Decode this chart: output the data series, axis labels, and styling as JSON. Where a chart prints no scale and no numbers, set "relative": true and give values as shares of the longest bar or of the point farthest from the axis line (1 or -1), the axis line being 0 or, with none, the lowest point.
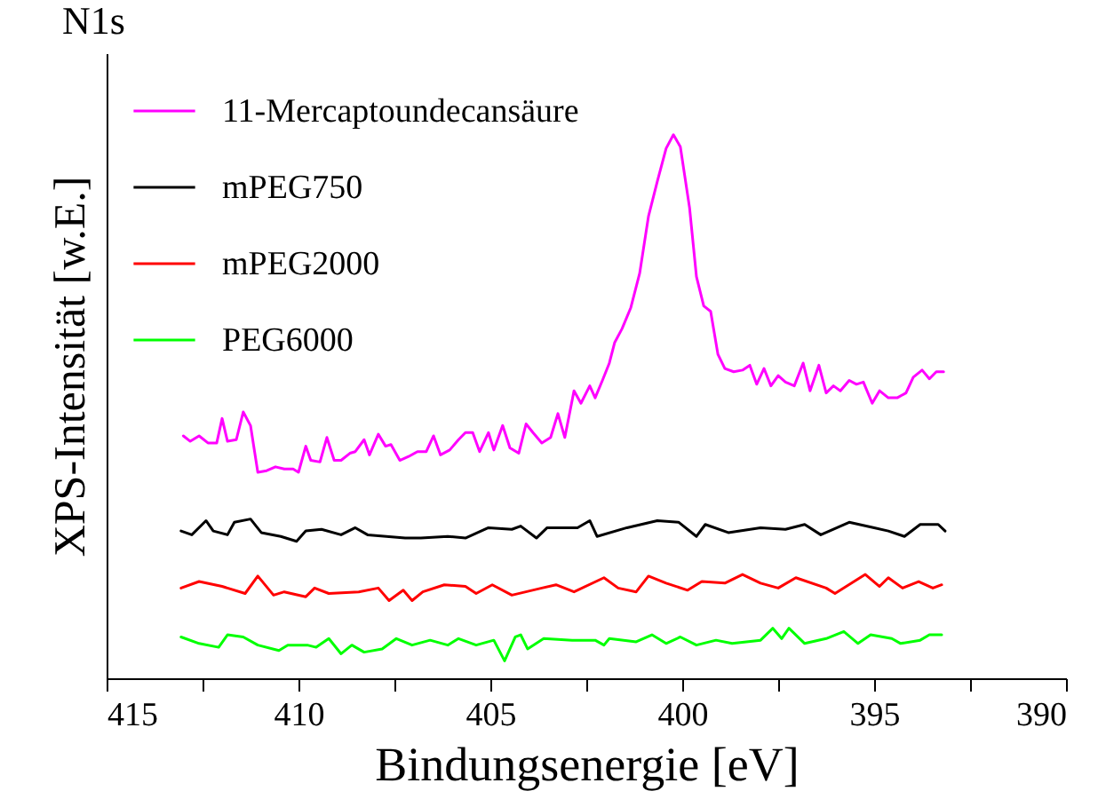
{
  "chart_data": {
    "type": "line",
    "title": "N1s",
    "xlabel": "Bindungsenergie [eV]",
    "ylabel": "XPS-Intensität [w.E.]",
    "relative": true,
    "legend": "top left",
    "grid": false,
    "xlim": [
      415,
      390
    ],
    "xticks": [
      415,
      {
        "value": 412.5,
        "label": null
      },
      410,
      {
        "value": 407.5,
        "label": null
      },
      405,
      {
        "value": 402.5,
        "label": null
      },
      400,
      {
        "value": 397.5,
        "label": null
      },
      395,
      {
        "value": 392.5,
        "label": null
      },
      390
    ],
    "series": [
      {
        "name": "11-Mercaptoundecansäure",
        "color": "#ff00ff",
        "x": [
          413.0,
          412.82,
          412.59,
          412.36,
          412.13,
          411.99,
          411.85,
          411.62,
          411.44,
          411.25,
          411.06,
          410.83,
          410.6,
          410.37,
          410.14,
          410.0,
          409.81,
          409.68,
          409.44,
          409.26,
          409.07,
          408.89,
          408.66,
          408.52,
          408.29,
          408.15,
          407.92,
          407.73,
          407.59,
          407.36,
          407.13,
          406.9,
          406.67,
          406.48,
          406.3,
          406.06,
          405.83,
          405.65,
          405.46,
          405.28,
          405.05,
          404.91,
          404.68,
          404.49,
          404.26,
          404.07,
          403.89,
          403.66,
          403.43,
          403.24,
          403.06,
          402.82,
          402.64,
          402.41,
          402.27,
          402.08,
          401.9,
          401.76,
          401.57,
          401.34,
          401.11,
          400.88,
          400.65,
          400.42,
          400.23,
          400.05,
          399.81,
          399.63,
          399.44,
          399.26,
          399.07,
          398.89,
          398.66,
          398.43,
          398.24,
          398.06,
          397.87,
          397.69,
          397.5,
          397.31,
          397.08,
          396.85,
          396.67,
          396.44,
          396.25,
          396.06,
          395.88,
          395.65,
          395.46,
          395.28,
          395.05,
          394.86,
          394.63,
          394.4,
          394.17,
          393.98,
          393.75,
          393.56,
          393.38,
          393.19
        ],
        "values": [
          0.446,
          0.436,
          0.446,
          0.433,
          0.433,
          0.478,
          0.436,
          0.439,
          0.49,
          0.465,
          0.379,
          0.382,
          0.389,
          0.385,
          0.385,
          0.379,
          0.427,
          0.401,
          0.398,
          0.443,
          0.401,
          0.401,
          0.414,
          0.417,
          0.439,
          0.411,
          0.449,
          0.427,
          0.43,
          0.401,
          0.408,
          0.417,
          0.417,
          0.446,
          0.411,
          0.42,
          0.439,
          0.452,
          0.452,
          0.417,
          0.452,
          0.42,
          0.465,
          0.424,
          0.414,
          0.468,
          0.452,
          0.433,
          0.443,
          0.487,
          0.443,
          0.529,
          0.506,
          0.538,
          0.516,
          0.548,
          0.58,
          0.618,
          0.643,
          0.682,
          0.745,
          0.85,
          0.914,
          0.975,
          1,
          0.978,
          0.866,
          0.739,
          0.685,
          0.675,
          0.596,
          0.57,
          0.564,
          0.567,
          0.576,
          0.541,
          0.57,
          0.538,
          0.557,
          0.545,
          0.538,
          0.58,
          0.529,
          0.576,
          0.525,
          0.538,
          0.529,
          0.548,
          0.541,
          0.545,
          0.506,
          0.529,
          0.516,
          0.516,
          0.525,
          0.554,
          0.567,
          0.551,
          0.564,
          0.564
        ]
      },
      {
        "name": "mPEG750",
        "color": "#000000",
        "x": [
          413.06,
          412.78,
          412.41,
          412.22,
          411.85,
          411.67,
          411.25,
          410.97,
          410.46,
          410.05,
          409.81,
          409.4,
          408.89,
          408.52,
          408.2,
          407.22,
          406.81,
          406.11,
          405.65,
          405.05,
          404.44,
          404.21,
          403.8,
          403.52,
          402.73,
          402.41,
          402.22,
          401.44,
          400.65,
          400.09,
          399.63,
          399.4,
          398.8,
          397.96,
          397.31,
          396.81,
          396.39,
          395.65,
          395.0,
          394.63,
          394.21,
          393.8,
          393.33,
          393.15
        ],
        "values": [
          0.271,
          0.264,
          0.29,
          0.271,
          0.264,
          0.287,
          0.293,
          0.268,
          0.261,
          0.252,
          0.271,
          0.274,
          0.264,
          0.277,
          0.264,
          0.258,
          0.258,
          0.261,
          0.258,
          0.277,
          0.274,
          0.28,
          0.258,
          0.277,
          0.277,
          0.29,
          0.261,
          0.277,
          0.29,
          0.287,
          0.261,
          0.283,
          0.268,
          0.277,
          0.274,
          0.283,
          0.264,
          0.287,
          0.277,
          0.271,
          0.261,
          0.283,
          0.283,
          0.271
        ]
      },
      {
        "name": "mPEG2000",
        "color": "#ff0000",
        "x": [
          413.06,
          412.59,
          411.99,
          411.39,
          411.06,
          410.65,
          410.37,
          409.81,
          409.58,
          409.21,
          408.43,
          407.92,
          407.64,
          407.27,
          407.04,
          406.76,
          406.2,
          405.65,
          405.37,
          404.95,
          404.44,
          403.66,
          403.29,
          402.82,
          402.04,
          401.67,
          401.2,
          400.88,
          400.42,
          399.86,
          399.49,
          398.89,
          398.43,
          397.96,
          397.5,
          397.04,
          396.25,
          396.02,
          395.23,
          394.86,
          394.63,
          394.26,
          393.84,
          393.47,
          393.24
        ],
        "values": [
          0.166,
          0.178,
          0.169,
          0.156,
          0.188,
          0.153,
          0.159,
          0.15,
          0.166,
          0.156,
          0.159,
          0.166,
          0.143,
          0.162,
          0.143,
          0.159,
          0.172,
          0.169,
          0.156,
          0.172,
          0.153,
          0.166,
          0.172,
          0.159,
          0.185,
          0.166,
          0.159,
          0.188,
          0.175,
          0.162,
          0.178,
          0.175,
          0.191,
          0.175,
          0.166,
          0.185,
          0.166,
          0.156,
          0.191,
          0.169,
          0.185,
          0.166,
          0.178,
          0.166,
          0.172
        ]
      },
      {
        "name": "PEG6000",
        "color": "#00ff00",
        "x": [
          413.06,
          412.59,
          412.08,
          411.85,
          411.44,
          411.06,
          410.51,
          410.28,
          409.77,
          409.54,
          409.21,
          408.89,
          408.61,
          408.29,
          407.82,
          407.45,
          407.04,
          406.57,
          406.11,
          405.83,
          405.37,
          404.91,
          404.63,
          404.35,
          404.21,
          404.03,
          403.61,
          402.87,
          402.27,
          402.04,
          401.9,
          401.2,
          400.79,
          400.42,
          400.05,
          399.63,
          399.12,
          398.7,
          397.96,
          397.64,
          397.41,
          397.22,
          396.81,
          396.25,
          395.79,
          395.42,
          395.09,
          394.54,
          394.31,
          393.8,
          393.56,
          393.24
        ],
        "values": [
          0.076,
          0.064,
          0.057,
          0.08,
          0.076,
          0.061,
          0.051,
          0.061,
          0.061,
          0.057,
          0.073,
          0.045,
          0.061,
          0.048,
          0.054,
          0.073,
          0.061,
          0.07,
          0.061,
          0.073,
          0.061,
          0.07,
          0.032,
          0.076,
          0.08,
          0.054,
          0.073,
          0.07,
          0.07,
          0.061,
          0.073,
          0.067,
          0.08,
          0.064,
          0.076,
          0.061,
          0.07,
          0.064,
          0.07,
          0.092,
          0.073,
          0.092,
          0.064,
          0.073,
          0.086,
          0.064,
          0.08,
          0.073,
          0.064,
          0.07,
          0.08,
          0.08
        ]
      }
    ]
  }
}
